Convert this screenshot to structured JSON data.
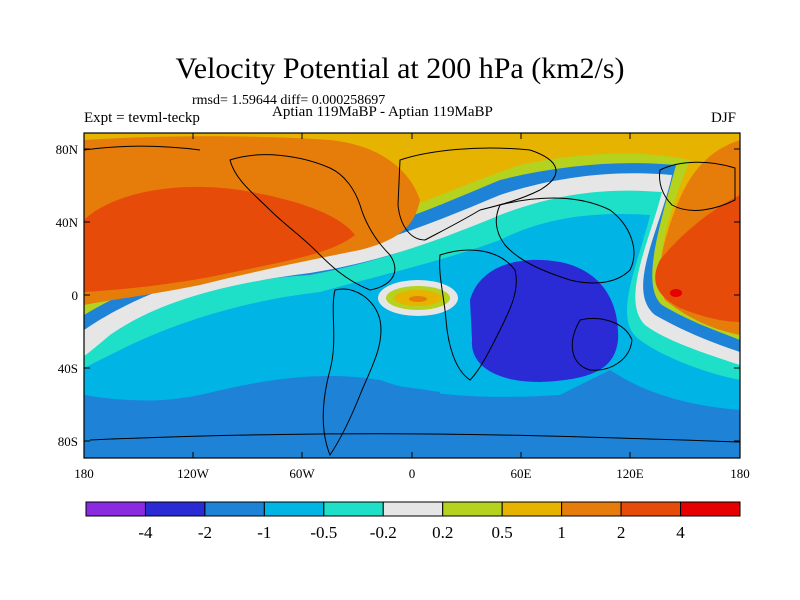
{
  "title": "Velocity Potential at 200 hPa (km2/s)",
  "stats_line": "rmsd= 1.59644 diff= 0.000258697",
  "experiment": "Expt = tevml-teckp",
  "subtitle": "Aptian   119MaBP - Aptian   119MaBP",
  "season": "DJF",
  "map": {
    "y_axis_labels": [
      "80N",
      "40N",
      "0",
      "40S",
      "80S"
    ],
    "x_axis_labels": [
      "180",
      "120W",
      "60W",
      "0",
      "60E",
      "120E",
      "180"
    ]
  },
  "colorbar": {
    "labels": [
      "-4",
      "-2",
      "-1",
      "-0.5",
      "-0.2",
      "0.2",
      "0.5",
      "1",
      "2",
      "4"
    ],
    "colors": [
      "#8a2be2",
      "#2b2bd6",
      "#1e82d6",
      "#00b4e6",
      "#1ee0c8",
      "#e6e6e6",
      "#b4d21e",
      "#e6b400",
      "#e67d0a",
      "#e64b0a",
      "#e60000"
    ]
  }
}
